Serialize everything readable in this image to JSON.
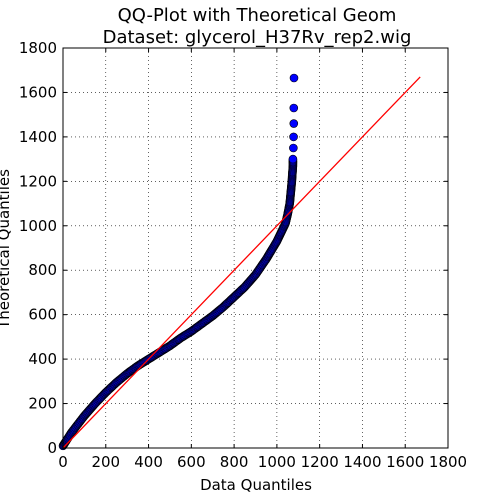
{
  "chart_data": {
    "type": "scatter",
    "title": "QQ-Plot with Theoretical Geom",
    "subtitle": "Dataset: glycerol_H37Rv_rep2.wig",
    "xlabel": "Data Quantiles",
    "ylabel": "Theoretical Quantiles",
    "xlim": [
      0,
      1800
    ],
    "ylim": [
      0,
      1800
    ],
    "xticks": [
      "0",
      "200",
      "400",
      "600",
      "800",
      "1000",
      "1200",
      "1400",
      "1600",
      "1800"
    ],
    "yticks": [
      "0",
      "200",
      "400",
      "600",
      "800",
      "1000",
      "1200",
      "1400",
      "1600",
      "1800"
    ],
    "grid": true,
    "marker_color": "#0000ff",
    "line_color": "#ff0000",
    "reference_line": {
      "x": [
        0,
        1670
      ],
      "y": [
        0,
        1670
      ]
    },
    "series": [
      {
        "points": {
          "x": [
            0,
            10,
            20,
            40,
            60,
            80,
            100,
            150,
            200,
            250,
            300,
            350,
            400,
            450,
            500,
            550,
            600,
            650,
            700,
            750,
            800,
            850,
            900,
            950,
            1000,
            1020,
            1040,
            1050,
            1060,
            1065,
            1070,
            1072,
            1075,
            1075,
            1077,
            1078,
            1079,
            1079,
            1080
          ],
          "y": [
            10,
            25,
            40,
            70,
            95,
            120,
            145,
            200,
            250,
            295,
            335,
            370,
            400,
            430,
            460,
            495,
            525,
            560,
            595,
            635,
            680,
            725,
            780,
            850,
            930,
            970,
            1010,
            1050,
            1100,
            1150,
            1200,
            1230,
            1270,
            1300,
            1350,
            1400,
            1460,
            1530,
            1665
          ]
        }
      }
    ]
  }
}
